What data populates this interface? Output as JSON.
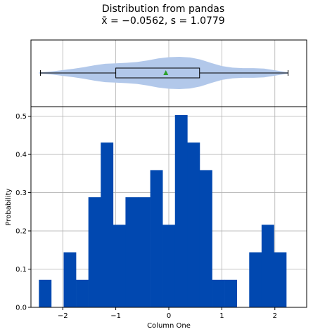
{
  "chart_data": {
    "type": "histogram",
    "title_line1": "Distribution from pandas",
    "title_line2": "x̄ = −0.0562, s = 1.0779",
    "xlabel": "Column One",
    "ylabel": "Probability",
    "xlim": [
      -2.6,
      2.6
    ],
    "ylim": [
      0,
      0.525
    ],
    "grid": true,
    "x_ticks": [
      -2,
      -1,
      0,
      1,
      2
    ],
    "x_tick_labels": [
      "−2",
      "−1",
      "0",
      "1",
      "2"
    ],
    "y_ticks": [
      0.0,
      0.1,
      0.2,
      0.3,
      0.4,
      0.5
    ],
    "y_tick_labels": [
      "0.0",
      "0.1",
      "0.2",
      "0.3",
      "0.4",
      "0.5"
    ],
    "bin_start": -2.45,
    "bin_width": 0.2333,
    "probabilities": [
      0.072,
      0.0,
      0.144,
      0.072,
      0.288,
      0.431,
      0.216,
      0.288,
      0.288,
      0.359,
      0.216,
      0.503,
      0.431,
      0.359,
      0.072,
      0.072,
      0.0,
      0.144,
      0.216,
      0.144
    ],
    "bar_color": "#0148b0",
    "box": {
      "min": -2.42,
      "q1": -1.0,
      "median": -0.05,
      "mean": -0.0562,
      "q3": 0.58,
      "max": 2.25,
      "box_color": "#b2c8ea",
      "mean_marker_color": "#2ca02c"
    },
    "violin": {
      "color": "#b2c8ea",
      "x": [
        -2.45,
        -2.2,
        -2.0,
        -1.8,
        -1.6,
        -1.4,
        -1.2,
        -1.0,
        -0.8,
        -0.6,
        -0.4,
        -0.2,
        0.0,
        0.2,
        0.4,
        0.6,
        0.8,
        1.0,
        1.2,
        1.4,
        1.6,
        1.8,
        2.0,
        2.25
      ],
      "density": [
        0.03,
        0.1,
        0.18,
        0.26,
        0.36,
        0.48,
        0.57,
        0.6,
        0.63,
        0.68,
        0.78,
        0.9,
        0.98,
        1.0,
        0.96,
        0.83,
        0.62,
        0.43,
        0.33,
        0.3,
        0.3,
        0.27,
        0.17,
        0.04
      ]
    }
  }
}
